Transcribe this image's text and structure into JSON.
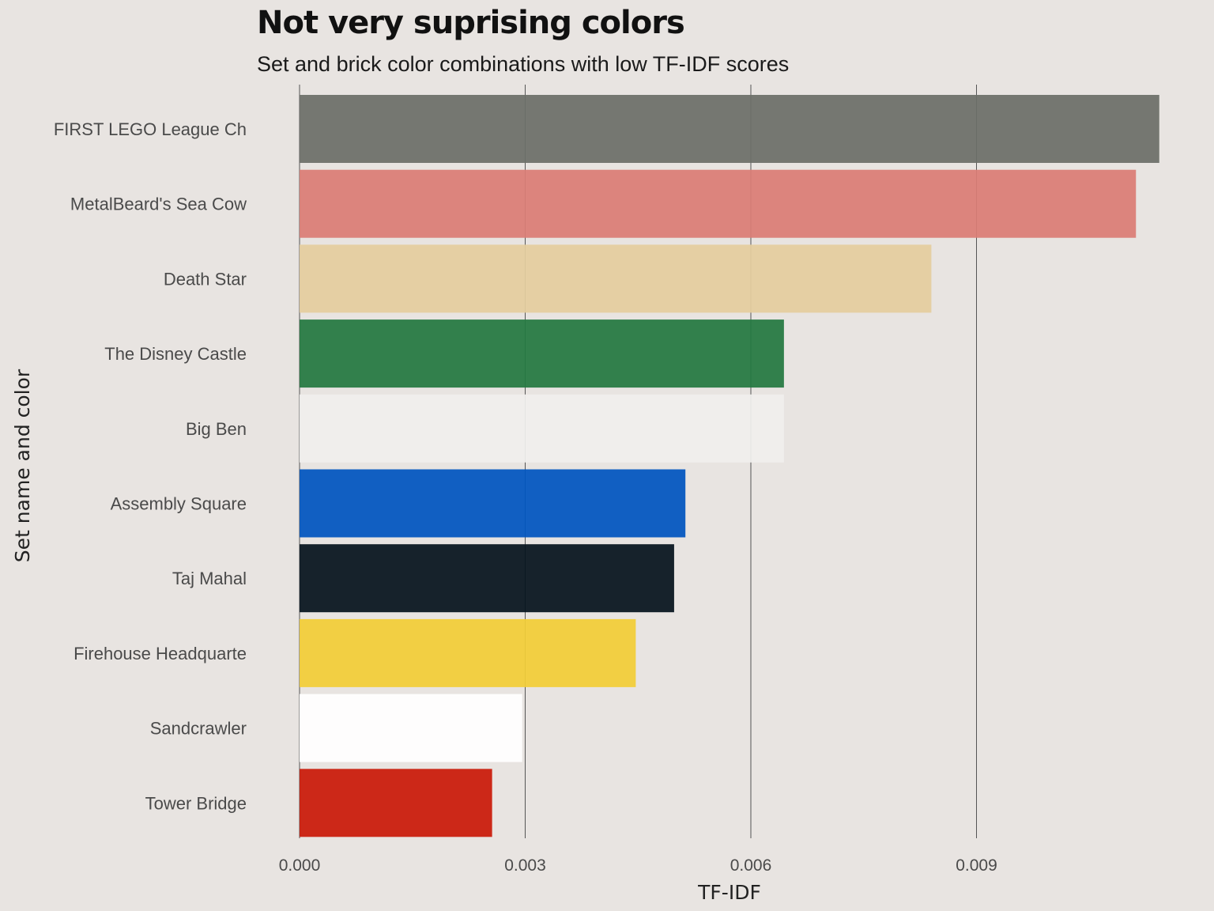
{
  "chart_data": {
    "type": "bar",
    "orientation": "horizontal",
    "title": "Not very suprising colors",
    "subtitle": "Set and brick color combinations with low TF-IDF scores",
    "xlabel": "TF-IDF",
    "ylabel": "Set name and color",
    "xlim": [
      0,
      0.0114
    ],
    "xticks": [
      0,
      0.003,
      0.006,
      0.009
    ],
    "xtick_labels": [
      "0.000",
      "0.003",
      "0.006",
      "0.009"
    ],
    "grid": "vertical major gridlines",
    "legend": "none",
    "bars": [
      {
        "category": "FIRST LEGO League Ch",
        "value": 0.01143,
        "color": "#6c6f68"
      },
      {
        "category": "MetalBeard's Sea Cow",
        "value": 0.01112,
        "color": "#da7d75"
      },
      {
        "category": "Death Star",
        "value": 0.0084,
        "color": "#e4cd9e"
      },
      {
        "category": "The Disney Castle",
        "value": 0.00644,
        "color": "#237841"
      },
      {
        "category": "Big Ben",
        "value": 0.00644,
        "color": "#f0efed"
      },
      {
        "category": "Assembly Square",
        "value": 0.00513,
        "color": "#0055bf"
      },
      {
        "category": "Taj Mahal",
        "value": 0.00498,
        "color": "#05131d"
      },
      {
        "category": "Firehouse Headquarte",
        "value": 0.00447,
        "color": "#f2cd37"
      },
      {
        "category": "Sandcrawler",
        "value": 0.00296,
        "color": "#ffffff"
      },
      {
        "category": "Tower Bridge",
        "value": 0.00256,
        "color": "#c91a09"
      }
    ]
  }
}
